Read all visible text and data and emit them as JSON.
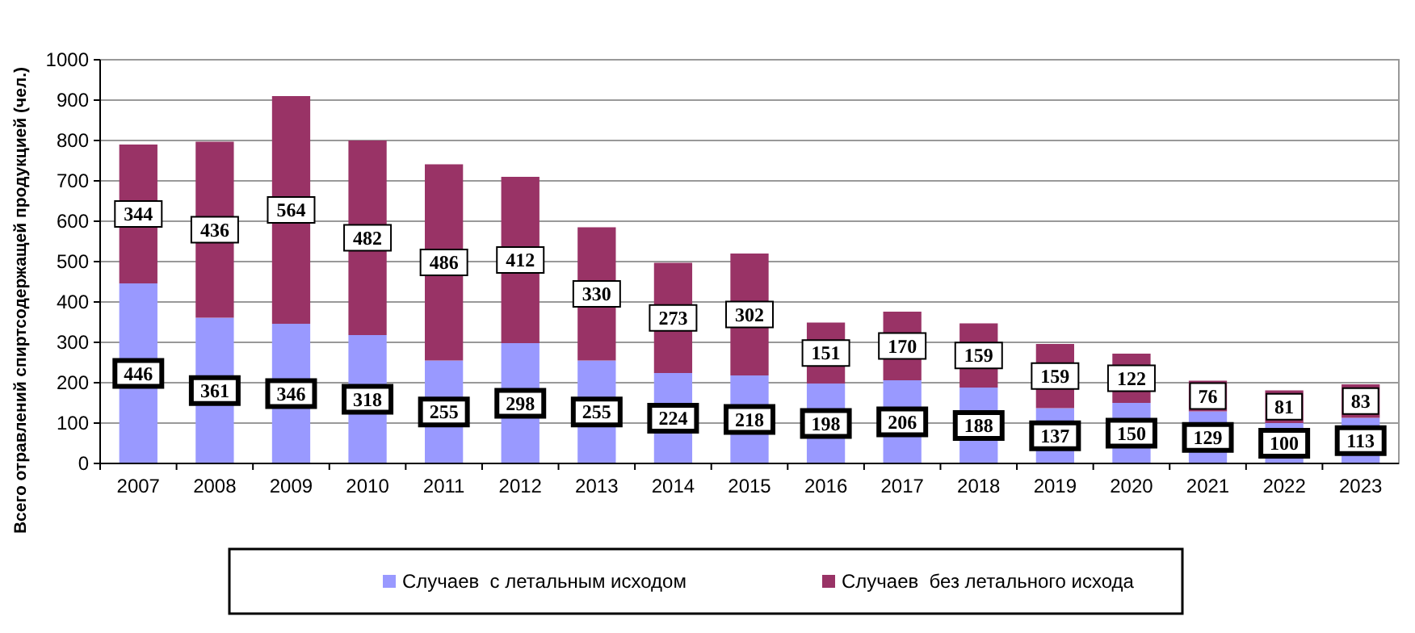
{
  "chart_data": {
    "type": "bar",
    "stacked": true,
    "ylabel": "Всего отравлений спиртсодержащей продукцией (чел.)",
    "categories": [
      "2007",
      "2008",
      "2009",
      "2010",
      "2011",
      "2012",
      "2013",
      "2014",
      "2015",
      "2016",
      "2017",
      "2018",
      "2019",
      "2020",
      "2021",
      "2022",
      "2023"
    ],
    "series": [
      {
        "name": "Случаев  с летальным исходом",
        "color": "#9999ff",
        "values": [
          446,
          361,
          346,
          318,
          255,
          298,
          255,
          224,
          218,
          198,
          206,
          188,
          137,
          150,
          129,
          100,
          113
        ]
      },
      {
        "name": "Случаев  без летального исхода",
        "color": "#993366",
        "values": [
          344,
          436,
          564,
          482,
          486,
          412,
          330,
          273,
          302,
          151,
          170,
          159,
          159,
          122,
          76,
          81,
          83
        ]
      }
    ],
    "ylim": [
      0,
      1000
    ],
    "yticks": [
      0,
      100,
      200,
      300,
      400,
      500,
      600,
      700,
      800,
      900,
      1000
    ],
    "grid": "y",
    "legend": "bottom",
    "data_labels": true
  }
}
